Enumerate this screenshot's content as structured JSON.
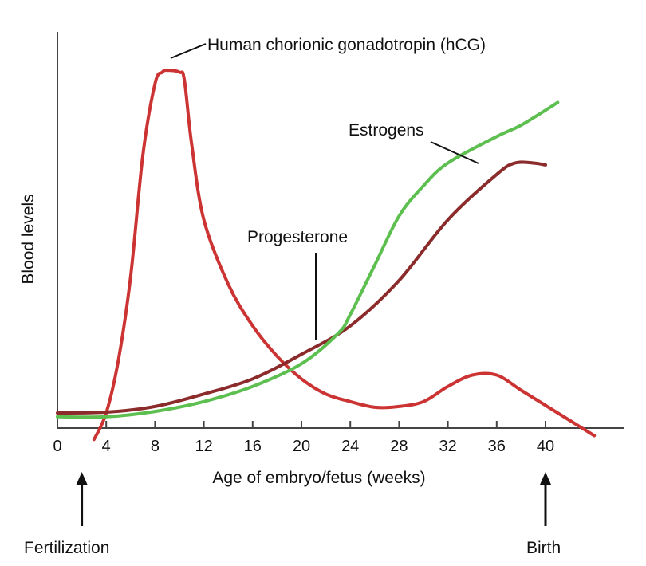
{
  "chart_data": {
    "type": "line",
    "title": "",
    "xlabel": "Age of embryo/fetus (weeks)",
    "ylabel": "Blood levels",
    "xlim": [
      0,
      44
    ],
    "ylim": [
      0,
      100
    ],
    "xticks": [
      0,
      4,
      8,
      12,
      16,
      20,
      24,
      28,
      32,
      36,
      40
    ],
    "grid": false,
    "series": [
      {
        "name": "Human chorionic gonadotropin (hCG)",
        "color": "#cc3333",
        "points": [
          [
            3,
            -3
          ],
          [
            4,
            4
          ],
          [
            5,
            18
          ],
          [
            6,
            40
          ],
          [
            7,
            72
          ],
          [
            8,
            91
          ],
          [
            8.6,
            94
          ],
          [
            9,
            94.5
          ],
          [
            10,
            94
          ],
          [
            10.4,
            92
          ],
          [
            11,
            75
          ],
          [
            12,
            55
          ],
          [
            14,
            38
          ],
          [
            16,
            27
          ],
          [
            18,
            19
          ],
          [
            20,
            13
          ],
          [
            22,
            9
          ],
          [
            24,
            7
          ],
          [
            26,
            5.5
          ],
          [
            28,
            5.7
          ],
          [
            30,
            7
          ],
          [
            32,
            11
          ],
          [
            34,
            14
          ],
          [
            36,
            14
          ],
          [
            38,
            10
          ],
          [
            40,
            6
          ],
          [
            42,
            2
          ],
          [
            44,
            -2
          ]
        ]
      },
      {
        "name": "Progesterone",
        "color": "#8b2b2b",
        "points": [
          [
            0,
            4
          ],
          [
            4,
            4.2
          ],
          [
            8,
            5.7
          ],
          [
            12,
            9
          ],
          [
            16,
            13
          ],
          [
            20,
            19.5
          ],
          [
            24,
            27
          ],
          [
            28,
            39
          ],
          [
            32,
            55
          ],
          [
            36,
            67
          ],
          [
            37.5,
            70
          ],
          [
            39,
            70
          ],
          [
            40,
            69.5
          ]
        ]
      },
      {
        "name": "Estrogens",
        "color": "#5cbf4f",
        "points": [
          [
            0,
            3
          ],
          [
            4,
            3
          ],
          [
            8,
            4.4
          ],
          [
            12,
            7
          ],
          [
            16,
            11
          ],
          [
            20,
            17
          ],
          [
            23,
            25
          ],
          [
            24,
            30
          ],
          [
            26,
            43
          ],
          [
            28,
            56
          ],
          [
            30,
            64
          ],
          [
            32,
            70
          ],
          [
            36,
            77
          ],
          [
            38,
            80
          ],
          [
            41,
            86
          ]
        ]
      }
    ],
    "annotations": [
      {
        "text": "Human chorionic gonadotropin (hCG)",
        "series": 0
      },
      {
        "text": "Estrogens",
        "series": 2
      },
      {
        "text": "Progesterone",
        "series": 1
      }
    ],
    "markers": [
      {
        "label": "Fertilization",
        "x": 2
      },
      {
        "label": "Birth",
        "x": 40
      }
    ]
  }
}
